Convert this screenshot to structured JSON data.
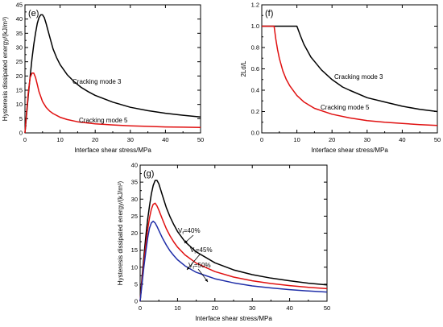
{
  "chart_data": [
    {
      "panel": "(e)",
      "type": "line",
      "xlabel": "Interface shear stress/MPa",
      "ylabel": "Hysteresis dissipated energy/(kJ/m³)",
      "xlim": [
        0,
        50
      ],
      "ylim": [
        0,
        45
      ],
      "xticks": [
        0,
        10,
        20,
        30,
        40,
        50
      ],
      "yticks": [
        0,
        5,
        10,
        15,
        20,
        25,
        30,
        35,
        40,
        45
      ],
      "annotations": [
        "Cracking mode 3",
        "Cracking mode 5"
      ],
      "series": [
        {
          "name": "Cracking mode 3",
          "color": "#000000",
          "x": [
            0,
            0.5,
            1,
            1.5,
            2,
            2.5,
            3,
            3.5,
            4,
            4.5,
            5,
            5.5,
            6,
            7,
            8,
            9,
            10,
            12,
            14,
            16,
            18,
            20,
            25,
            30,
            35,
            40,
            45,
            50
          ],
          "y": [
            0,
            7,
            14,
            20,
            26,
            31,
            35,
            38.5,
            40.5,
            41.5,
            41.5,
            40.5,
            38.5,
            34,
            29.5,
            26.5,
            24,
            20.5,
            18,
            16,
            14.5,
            13.2,
            10.8,
            9,
            7.8,
            6.9,
            6.2,
            5.6
          ]
        },
        {
          "name": "Cracking mode 5",
          "color": "#e01010",
          "x": [
            0,
            0.5,
            1,
            1.5,
            2,
            2.5,
            3,
            3.5,
            4,
            5,
            6,
            7,
            8,
            10,
            12,
            15,
            20,
            25,
            30,
            35,
            40,
            45,
            50
          ],
          "y": [
            0,
            8,
            15,
            19.5,
            21,
            21,
            19.5,
            17,
            14.5,
            11,
            9,
            7.7,
            6.8,
            5.5,
            4.7,
            3.9,
            3.2,
            2.8,
            2.5,
            2.3,
            2.1,
            2.0,
            1.9
          ]
        }
      ]
    },
    {
      "panel": "(f)",
      "type": "line",
      "xlabel": "Interface shear stress/MPa",
      "ylabel": "2Ld/L",
      "xlim": [
        0,
        50
      ],
      "ylim": [
        0,
        1.2
      ],
      "xticks": [
        0,
        10,
        20,
        30,
        40,
        50
      ],
      "yticks": [
        0.0,
        0.2,
        0.4,
        0.6,
        0.8,
        1.0,
        1.2
      ],
      "yticklabels": [
        "0.0",
        "0.2",
        "0.4",
        "0.6",
        "0.8",
        "1.0",
        "1.2"
      ],
      "annotations": [
        "Cracking mode 3",
        "Cracking mode 5"
      ],
      "series": [
        {
          "name": "Cracking mode 3",
          "color": "#000000",
          "x": [
            0,
            10,
            11,
            12,
            13,
            14,
            15,
            17,
            20,
            23,
            25,
            30,
            35,
            40,
            45,
            50
          ],
          "y": [
            1.0,
            1.0,
            0.91,
            0.83,
            0.77,
            0.71,
            0.67,
            0.59,
            0.5,
            0.43,
            0.4,
            0.33,
            0.29,
            0.25,
            0.22,
            0.2
          ]
        },
        {
          "name": "Cracking mode 5",
          "color": "#e01010",
          "x": [
            0,
            3.5,
            4,
            4.5,
            5,
            6,
            7,
            8,
            10,
            12,
            15,
            20,
            25,
            30,
            35,
            40,
            45,
            50
          ],
          "y": [
            1.0,
            1.0,
            0.88,
            0.78,
            0.7,
            0.58,
            0.5,
            0.44,
            0.35,
            0.29,
            0.23,
            0.175,
            0.14,
            0.115,
            0.1,
            0.088,
            0.078,
            0.07
          ]
        }
      ]
    },
    {
      "panel": "(g)",
      "type": "line",
      "xlabel": "Interface shear stress/MPa",
      "ylabel": "Hysteresis dissipated energy/(kJ/m³)",
      "xlim": [
        0,
        50
      ],
      "ylim": [
        0,
        40
      ],
      "xticks": [
        0,
        10,
        20,
        30,
        40,
        50
      ],
      "yticks": [
        0,
        5,
        10,
        15,
        20,
        25,
        30,
        35,
        40
      ],
      "annotations": [
        "Vₑ=40%",
        "Vₑ=45%",
        "Vₑ=50%"
      ],
      "series": [
        {
          "name": "Vₑ=40%",
          "color": "#000000",
          "x": [
            0,
            0.5,
            1,
            1.5,
            2,
            2.5,
            3,
            3.5,
            4,
            4.5,
            5,
            6,
            7,
            8,
            9,
            10,
            12,
            15,
            20,
            25,
            30,
            35,
            40,
            45,
            50
          ],
          "y": [
            0,
            7,
            13,
            19,
            24,
            28,
            31.5,
            34,
            35.5,
            35.5,
            34.5,
            31,
            27.5,
            24.8,
            22.5,
            20.5,
            17.5,
            14.5,
            11.3,
            9.2,
            7.8,
            6.8,
            6.0,
            5.3,
            4.8
          ]
        },
        {
          "name": "Vₑ=45%",
          "color": "#e01010",
          "x": [
            0,
            0.5,
            1,
            1.5,
            2,
            2.5,
            3,
            3.5,
            4,
            4.5,
            5,
            6,
            7,
            8,
            9,
            10,
            12,
            15,
            20,
            25,
            30,
            35,
            40,
            45,
            50
          ],
          "y": [
            0,
            6,
            11.5,
            16.5,
            21,
            24.5,
            27,
            28.5,
            28.8,
            28,
            26.8,
            24,
            21.3,
            19.2,
            17.4,
            15.9,
            13.6,
            11.2,
            8.7,
            7.1,
            6.0,
            5.2,
            4.6,
            4.1,
            3.7
          ]
        },
        {
          "name": "Vₑ=50%",
          "color": "#1f2ea8",
          "x": [
            0,
            0.5,
            1,
            1.5,
            2,
            2.5,
            3,
            3.5,
            4,
            4.5,
            5,
            6,
            7,
            8,
            9,
            10,
            12,
            15,
            20,
            25,
            30,
            35,
            40,
            45,
            50
          ],
          "y": [
            0,
            5,
            10,
            14.5,
            18.5,
            21.5,
            23,
            23.5,
            23,
            22,
            20.8,
            18.5,
            16.5,
            14.8,
            13.4,
            12.2,
            10.4,
            8.5,
            6.6,
            5.4,
            4.5,
            3.9,
            3.4,
            3.0,
            2.7
          ]
        }
      ]
    }
  ]
}
